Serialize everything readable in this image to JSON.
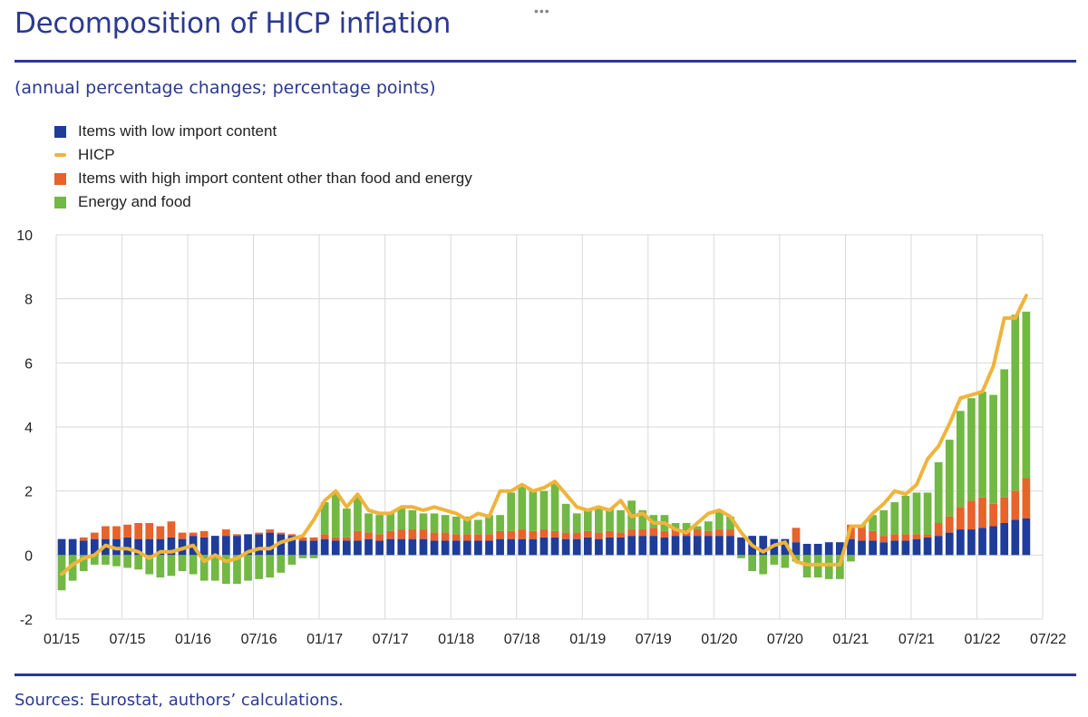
{
  "page": {
    "title": "Decomposition of HICP inflation",
    "subtitle": "(annual percentage changes; percentage points)",
    "source": "Sources: Eurostat, authors’ calculations.",
    "menu_icon": "more-horizontal-icon"
  },
  "chart_data": {
    "type": "bar",
    "stacked": true,
    "grid": true,
    "legend_position": "top-left",
    "ylim": [
      -2,
      10
    ],
    "yticks": [
      -2,
      0,
      2,
      4,
      6,
      8,
      10
    ],
    "xticks": [
      "01/15",
      "07/15",
      "01/16",
      "07/16",
      "01/17",
      "07/17",
      "01/18",
      "07/18",
      "01/19",
      "07/19",
      "01/20",
      "07/20",
      "01/21",
      "07/21",
      "01/22",
      "07/22"
    ],
    "x": [
      "01/15",
      "02/15",
      "03/15",
      "04/15",
      "05/15",
      "06/15",
      "07/15",
      "08/15",
      "09/15",
      "10/15",
      "11/15",
      "12/15",
      "01/16",
      "02/16",
      "03/16",
      "04/16",
      "05/16",
      "06/16",
      "07/16",
      "08/16",
      "09/16",
      "10/16",
      "11/16",
      "12/16",
      "01/17",
      "02/17",
      "03/17",
      "04/17",
      "05/17",
      "06/17",
      "07/17",
      "08/17",
      "09/17",
      "10/17",
      "11/17",
      "12/17",
      "01/18",
      "02/18",
      "03/18",
      "04/18",
      "05/18",
      "06/18",
      "07/18",
      "08/18",
      "09/18",
      "10/18",
      "11/18",
      "12/18",
      "01/19",
      "02/19",
      "03/19",
      "04/19",
      "05/19",
      "06/19",
      "07/19",
      "08/19",
      "09/19",
      "10/19",
      "11/19",
      "12/19",
      "01/20",
      "02/20",
      "03/20",
      "04/20",
      "05/20",
      "06/20",
      "07/20",
      "08/20",
      "09/20",
      "10/20",
      "11/20",
      "12/20",
      "01/21",
      "02/21",
      "03/21",
      "04/21",
      "05/21",
      "06/21",
      "07/21",
      "08/21",
      "09/21",
      "10/21",
      "11/21",
      "12/21",
      "01/22",
      "02/22",
      "03/22",
      "04/22",
      "05/22"
    ],
    "colors": {
      "low_import": "#1f3c99",
      "high_import": "#e8622c",
      "energy_food": "#72b844",
      "hicp": "#f0b43c"
    },
    "series": [
      {
        "name": "Items with low import content",
        "kind": "bar",
        "color": "#1f3c99",
        "values": [
          0.5,
          0.5,
          0.45,
          0.5,
          0.5,
          0.5,
          0.55,
          0.5,
          0.5,
          0.5,
          0.55,
          0.5,
          0.6,
          0.55,
          0.6,
          0.6,
          0.6,
          0.65,
          0.65,
          0.7,
          0.65,
          0.6,
          0.45,
          0.45,
          0.5,
          0.45,
          0.45,
          0.45,
          0.5,
          0.45,
          0.5,
          0.5,
          0.5,
          0.5,
          0.45,
          0.45,
          0.45,
          0.45,
          0.45,
          0.45,
          0.5,
          0.5,
          0.5,
          0.5,
          0.55,
          0.55,
          0.5,
          0.5,
          0.55,
          0.5,
          0.55,
          0.55,
          0.6,
          0.6,
          0.6,
          0.55,
          0.6,
          0.6,
          0.6,
          0.6,
          0.6,
          0.6,
          0.55,
          0.6,
          0.6,
          0.5,
          0.5,
          0.4,
          0.35,
          0.35,
          0.4,
          0.4,
          0.5,
          0.45,
          0.45,
          0.4,
          0.45,
          0.45,
          0.5,
          0.55,
          0.6,
          0.7,
          0.8,
          0.8,
          0.85,
          0.9,
          1.0,
          1.1,
          1.15
        ]
      },
      {
        "name": "Items with high import content other than food and energy",
        "kind": "bar",
        "color": "#e8622c",
        "values": [
          0.0,
          0.0,
          0.1,
          0.2,
          0.4,
          0.4,
          0.4,
          0.5,
          0.5,
          0.4,
          0.5,
          0.2,
          0.1,
          0.2,
          0.0,
          0.2,
          0.05,
          0.0,
          0.05,
          0.1,
          0.05,
          0.05,
          0.1,
          0.1,
          0.15,
          0.1,
          0.1,
          0.3,
          0.2,
          0.2,
          0.25,
          0.3,
          0.3,
          0.3,
          0.25,
          0.25,
          0.2,
          0.2,
          0.2,
          0.2,
          0.25,
          0.25,
          0.3,
          0.25,
          0.25,
          0.2,
          0.2,
          0.2,
          0.2,
          0.2,
          0.2,
          0.15,
          0.2,
          0.2,
          0.25,
          0.2,
          0.2,
          0.2,
          0.2,
          0.15,
          0.2,
          0.2,
          0.0,
          0.0,
          0.0,
          0.0,
          0.0,
          0.45,
          0.0,
          0.0,
          0.0,
          0.0,
          0.45,
          0.4,
          0.3,
          0.2,
          0.2,
          0.2,
          0.15,
          0.1,
          0.4,
          0.5,
          0.7,
          0.9,
          0.95,
          0.7,
          0.8,
          0.9,
          1.25
        ]
      },
      {
        "name": "Energy and food",
        "kind": "bar",
        "color": "#72b844",
        "values": [
          -1.1,
          -0.8,
          -0.5,
          -0.3,
          -0.3,
          -0.35,
          -0.4,
          -0.45,
          -0.6,
          -0.7,
          -0.65,
          -0.5,
          -0.6,
          -0.8,
          -0.8,
          -0.9,
          -0.9,
          -0.8,
          -0.75,
          -0.7,
          -0.55,
          -0.3,
          -0.1,
          -0.1,
          1.0,
          1.4,
          0.9,
          1.1,
          0.6,
          0.6,
          0.6,
          0.7,
          0.6,
          0.5,
          0.6,
          0.55,
          0.55,
          0.55,
          0.45,
          0.6,
          0.5,
          1.2,
          1.4,
          1.3,
          1.2,
          1.5,
          0.9,
          0.6,
          0.7,
          0.8,
          0.7,
          0.7,
          0.9,
          0.6,
          0.4,
          0.5,
          0.2,
          0.2,
          0.1,
          0.3,
          0.55,
          0.4,
          -0.1,
          -0.5,
          -0.6,
          -0.3,
          -0.4,
          -0.2,
          -0.7,
          -0.7,
          -0.75,
          -0.75,
          -0.2,
          0.1,
          0.5,
          0.8,
          1.0,
          1.2,
          1.3,
          1.3,
          1.9,
          2.4,
          3.0,
          3.2,
          3.3,
          3.4,
          4.0,
          5.5,
          5.2
        ]
      },
      {
        "name": "HICP",
        "kind": "line",
        "color": "#f0b43c",
        "values": [
          -0.6,
          -0.3,
          -0.1,
          0.0,
          0.3,
          0.2,
          0.2,
          0.1,
          -0.1,
          0.1,
          0.1,
          0.2,
          0.3,
          -0.2,
          0.0,
          -0.2,
          -0.1,
          0.1,
          0.2,
          0.2,
          0.4,
          0.5,
          0.6,
          1.1,
          1.7,
          2.0,
          1.5,
          1.9,
          1.4,
          1.3,
          1.3,
          1.5,
          1.5,
          1.4,
          1.5,
          1.4,
          1.3,
          1.1,
          1.3,
          1.2,
          2.0,
          2.0,
          2.2,
          2.0,
          2.1,
          2.3,
          1.9,
          1.5,
          1.4,
          1.5,
          1.4,
          1.7,
          1.2,
          1.3,
          1.0,
          1.0,
          0.8,
          0.7,
          1.0,
          1.3,
          1.4,
          1.2,
          0.7,
          0.3,
          0.1,
          0.3,
          0.4,
          -0.2,
          -0.3,
          -0.3,
          -0.3,
          -0.3,
          0.9,
          0.9,
          1.3,
          1.6,
          2.0,
          1.9,
          2.2,
          3.0,
          3.4,
          4.1,
          4.9,
          5.0,
          5.1,
          5.9,
          7.4,
          7.4,
          8.1
        ]
      }
    ]
  }
}
